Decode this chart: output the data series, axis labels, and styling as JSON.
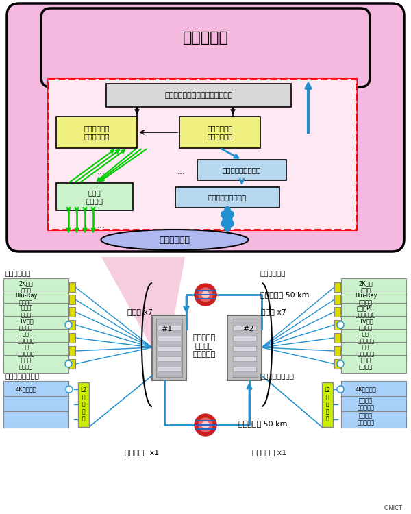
{
  "title_top": "光ファイバ",
  "server_label": "サーバ、端末",
  "ctrl_box": "光パケット・光パス統合制御装置",
  "insert_box": "光挙入装置／\n資源調整装置",
  "split_box": "光分岐装置／\n資源調整装置",
  "bus_rx": "光パス\n送受信器",
  "pkt_switch": "光パケットスイッチ",
  "pkt_rx": "光パケット送受信器",
  "node_label": "光パケット\n・光パス\n統合ノード",
  "fiber_top": "光ファイバ 50 km",
  "fiber_bottom": "光ファイバ 50 km",
  "bus_x7_left": "光パス x7",
  "bus_x7_right": "光パス x7",
  "pkt_x1_left": "光パケット x1",
  "pkt_x1_right": "光パケット x1",
  "bus_terminal_left": "光パス用端末",
  "bus_terminal_right": "光パス用端末",
  "pkt_terminal_left": "光パケット用端末",
  "pkt_terminal_right": "光パケット用端末",
  "left_bus_items": [
    "2K映像\n送受信",
    "Blu-Ray\n映像配信",
    "データ\nサーバ",
    "TV会議\nシステム",
    "瞬時\nデータ転送",
    "瞬時\nデータ転送",
    "雪祭り\n映像配信"
  ],
  "right_bus_items": [
    "2K映像\n送受信",
    "Blu-Ray\n映像受信",
    "ノートPC\nダウンロード",
    "TV会議\nシステム",
    "瞬時\nデータ転送",
    "瞬時\nデータ転送",
    "雪祭り\n映像受信"
  ],
  "left_pkt_items": [
    "4K映像配信",
    "",
    ""
  ],
  "right_pkt_items": [
    "4K映像受信",
    "多ユーザ\nデータ転送",
    "多ユーザ\nデータ転送"
  ],
  "nict_label": "©NICT",
  "pink_bg": "#f5b8df",
  "pink_inner": "#fde8f4",
  "green_box_color": "#ccf2cc",
  "blue_box_color": "#b8d8f0",
  "yellow_color": "#dddd00",
  "gray_color": "#d8d8d8",
  "blue_arrow": "#2090d0",
  "green_arrow": "#00cc00",
  "red_dashed": "#ff0000",
  "light_blue_ellipse": "#b0b8f0",
  "fiber_red": "#cc2020"
}
